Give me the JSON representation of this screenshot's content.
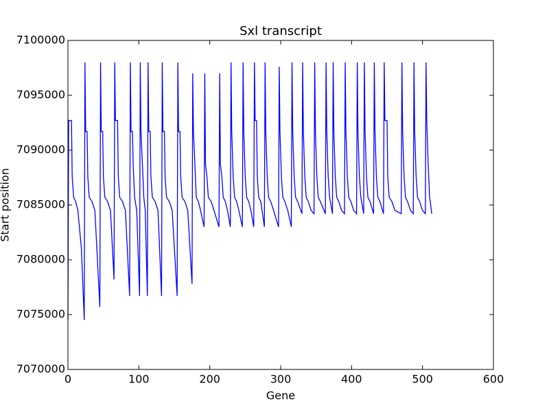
{
  "chart_data": {
    "type": "line",
    "title": "Sxl transcript",
    "xlabel": "Gene",
    "ylabel": "Start position",
    "xlim": [
      0,
      600
    ],
    "xticks": [
      0,
      100,
      200,
      300,
      400,
      500,
      600
    ],
    "ylim": [
      7070000,
      7100000
    ],
    "yticks": [
      7070000,
      7075000,
      7080000,
      7085000,
      7090000,
      7095000,
      7100000
    ],
    "grid": false,
    "x": [
      0,
      1,
      5,
      6,
      8,
      11,
      14,
      19,
      23,
      24,
      25,
      27,
      28,
      30,
      34,
      38,
      45,
      46,
      47,
      49,
      50,
      52,
      56,
      60,
      65,
      66,
      67,
      70,
      71,
      73,
      77,
      81,
      87,
      88,
      89,
      91,
      92,
      94,
      97,
      101,
      102,
      103,
      105,
      107,
      109,
      112,
      113,
      114,
      116,
      117,
      119,
      123,
      127,
      132,
      133,
      134,
      136,
      137,
      139,
      143,
      147,
      154,
      155,
      156,
      158,
      159,
      161,
      165,
      169,
      175,
      176,
      177,
      179,
      181,
      184,
      187,
      192,
      193,
      194,
      196,
      198,
      202,
      206,
      213,
      214,
      215,
      217,
      219,
      222,
      225,
      229,
      230,
      231,
      233,
      235,
      238,
      241,
      246,
      247,
      248,
      250,
      252,
      255,
      258,
      262,
      263,
      264,
      266,
      267,
      269,
      272,
      277,
      278,
      279,
      281,
      283,
      286,
      290,
      297,
      298,
      299,
      301,
      303,
      306,
      310,
      315,
      316,
      317,
      319,
      321,
      324,
      330,
      331,
      332,
      334,
      336,
      339,
      343,
      347,
      348,
      349,
      351,
      353,
      356,
      363,
      364,
      365,
      367,
      369,
      373,
      374,
      375,
      377,
      379,
      382,
      386,
      390,
      391,
      392,
      394,
      396,
      399,
      403,
      407,
      408,
      409,
      411,
      413,
      417,
      418,
      419,
      421,
      423,
      426,
      431,
      432,
      433,
      435,
      437,
      440,
      445,
      446,
      447,
      450,
      451,
      453,
      457,
      461,
      470,
      471,
      472,
      474,
      476,
      479,
      483,
      487,
      488,
      489,
      491,
      493,
      496,
      500,
      504,
      505,
      506,
      508,
      510,
      511,
      513
    ],
    "series": [
      {
        "name": "Sxl",
        "color": "#0000ff",
        "values": [
          7074500,
          7092700,
          7092700,
          7087600,
          7085700,
          7085300,
          7084500,
          7081000,
          7074500,
          7098000,
          7091700,
          7091700,
          7087600,
          7085700,
          7085300,
          7084500,
          7075700,
          7098000,
          7091700,
          7091700,
          7087600,
          7085700,
          7085300,
          7084500,
          7078200,
          7098000,
          7092700,
          7092700,
          7087600,
          7085700,
          7085300,
          7084500,
          7076700,
          7098000,
          7091700,
          7091700,
          7088700,
          7085700,
          7084500,
          7076700,
          7098000,
          7091700,
          7088700,
          7085700,
          7084500,
          7076700,
          7098000,
          7091700,
          7091700,
          7087600,
          7085700,
          7085300,
          7084500,
          7076700,
          7098000,
          7091700,
          7091700,
          7087600,
          7085700,
          7085300,
          7084500,
          7076700,
          7098000,
          7091700,
          7091700,
          7087600,
          7085700,
          7085300,
          7084500,
          7077800,
          7097000,
          7091700,
          7088700,
          7085700,
          7085300,
          7084500,
          7083000,
          7097000,
          7088700,
          7087600,
          7085700,
          7085300,
          7084500,
          7083000,
          7097000,
          7088700,
          7087600,
          7085700,
          7085300,
          7084500,
          7083000,
          7098000,
          7091700,
          7087600,
          7085700,
          7085300,
          7084500,
          7083000,
          7098000,
          7091700,
          7087600,
          7085700,
          7085300,
          7084500,
          7083000,
          7098000,
          7092700,
          7092700,
          7087600,
          7085700,
          7085300,
          7083000,
          7098000,
          7091700,
          7087600,
          7085700,
          7085300,
          7084500,
          7083000,
          7097600,
          7091700,
          7087600,
          7085700,
          7085300,
          7084500,
          7083000,
          7098000,
          7091700,
          7087600,
          7085700,
          7085300,
          7084200,
          7098000,
          7091700,
          7087600,
          7085700,
          7085300,
          7084500,
          7084200,
          7098000,
          7091700,
          7087600,
          7085700,
          7085300,
          7084200,
          7098000,
          7091700,
          7087600,
          7085700,
          7084200,
          7098000,
          7091700,
          7087600,
          7085700,
          7085300,
          7084500,
          7084200,
          7098000,
          7091700,
          7087600,
          7085700,
          7085300,
          7084500,
          7084200,
          7098000,
          7091700,
          7087600,
          7085700,
          7084200,
          7098000,
          7091700,
          7087600,
          7085700,
          7085300,
          7084200,
          7098000,
          7091700,
          7087600,
          7085700,
          7085300,
          7084200,
          7098000,
          7092700,
          7092700,
          7087600,
          7085700,
          7085300,
          7084500,
          7084200,
          7098000,
          7091700,
          7087600,
          7085700,
          7085300,
          7084500,
          7084200,
          7098000,
          7091700,
          7087600,
          7085700,
          7085300,
          7084500,
          7084200,
          7098000,
          7092700,
          7088700,
          7085700,
          7085300,
          7084200
        ]
      }
    ]
  }
}
